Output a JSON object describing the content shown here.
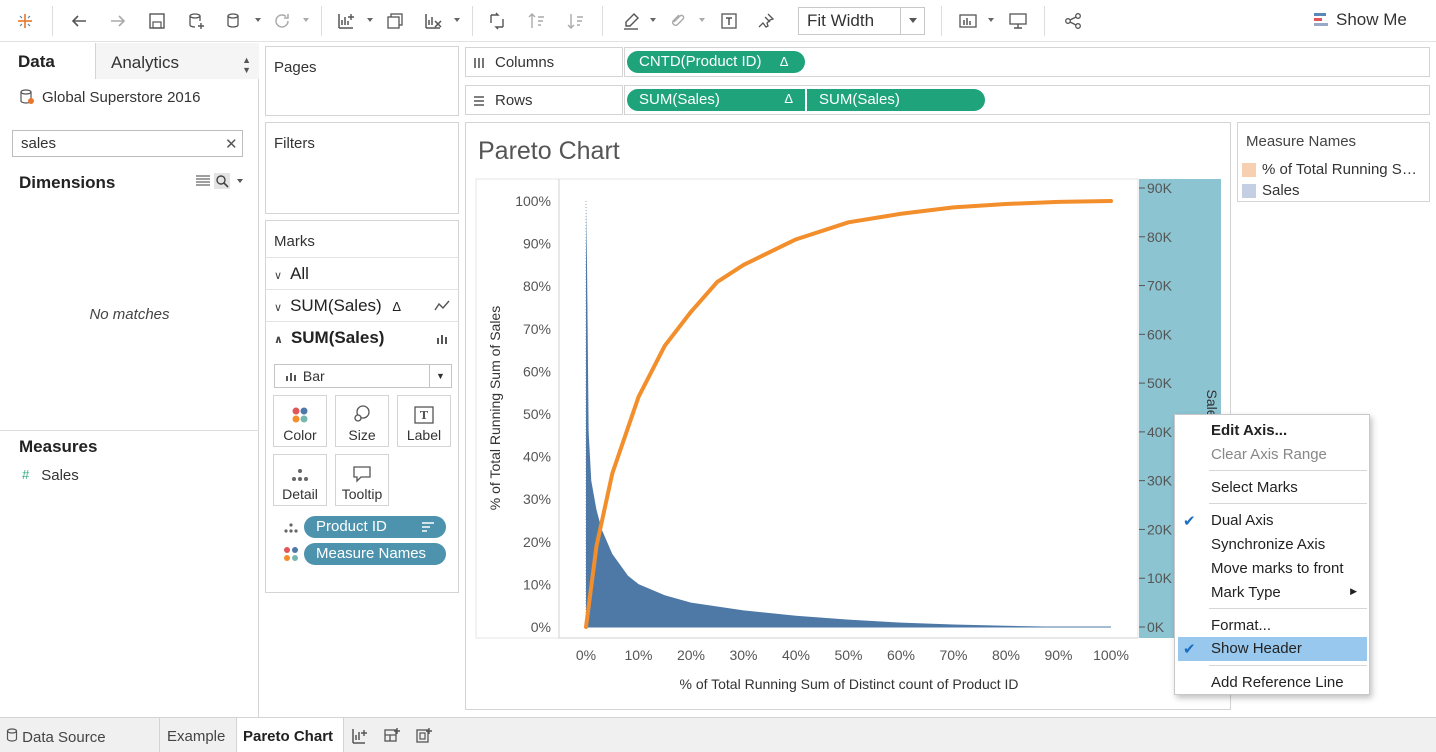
{
  "toolbar": {
    "fit_label": "Fit Width",
    "showme_label": "Show Me"
  },
  "data_pane": {
    "tab_data": "Data",
    "tab_analytics": "Analytics",
    "datasource": "Global Superstore 2016",
    "search_value": "sales",
    "dimensions_title": "Dimensions",
    "no_matches": "No matches",
    "measures_title": "Measures",
    "measures": [
      "Sales"
    ]
  },
  "cards": {
    "pages": "Pages",
    "filters": "Filters",
    "marks": "Marks",
    "marks_all": "All",
    "marks_layer1": "SUM(Sales)",
    "marks_layer1_delta": "Δ",
    "marks_layer2": "SUM(Sales)",
    "mark_type": "Bar",
    "color": "Color",
    "size": "Size",
    "label": "Label",
    "detail": "Detail",
    "tooltip": "Tooltip",
    "pill_product": "Product ID",
    "pill_measure": "Measure Names"
  },
  "shelves": {
    "columns_label": "Columns",
    "rows_label": "Rows",
    "columns_pill": "CNTD(Product ID)",
    "columns_pill_delta": "Δ",
    "rows_pill1": "SUM(Sales)",
    "rows_pill1_delta": "Δ",
    "rows_pill2": "SUM(Sales)"
  },
  "view": {
    "title": "Pareto Chart"
  },
  "chart_data": {
    "type": "bar",
    "title": "Pareto Chart",
    "xlabel": "% of Total Running Sum of Distinct count of Product ID",
    "ylabel_left": "% of Total Running Sum of Sales",
    "ylabel_right": "Sales",
    "x_ticks": [
      "0%",
      "10%",
      "20%",
      "30%",
      "40%",
      "50%",
      "60%",
      "70%",
      "80%",
      "90%",
      "100%"
    ],
    "y_left_ticks": [
      "0%",
      "10%",
      "20%",
      "30%",
      "40%",
      "50%",
      "60%",
      "70%",
      "80%",
      "90%",
      "100%"
    ],
    "y_right_ticks": [
      "0K",
      "10K",
      "20K",
      "30K",
      "40K",
      "50K",
      "60K",
      "70K",
      "80K",
      "90K"
    ],
    "xlim": [
      0,
      1
    ],
    "ylim_left": [
      0,
      1
    ],
    "ylim_right": [
      0,
      90000
    ],
    "series": [
      {
        "name": "% of Total Running Sum of Sales",
        "mark": "line",
        "color": "#f28e2b",
        "x": [
          0,
          0.02,
          0.05,
          0.1,
          0.15,
          0.2,
          0.25,
          0.3,
          0.4,
          0.5,
          0.6,
          0.7,
          0.8,
          0.9,
          1.0
        ],
        "y": [
          0,
          0.19,
          0.36,
          0.54,
          0.66,
          0.74,
          0.81,
          0.85,
          0.91,
          0.95,
          0.97,
          0.985,
          0.993,
          0.998,
          1.0
        ]
      },
      {
        "name": "Sales",
        "mark": "bar",
        "color": "#4e79a7",
        "x": [
          0,
          0.002,
          0.005,
          0.01,
          0.02,
          0.03,
          0.05,
          0.08,
          0.1,
          0.15,
          0.2,
          0.3,
          0.4,
          0.5,
          0.6,
          0.7,
          0.8,
          0.9
        ],
        "y": [
          86000,
          74000,
          40000,
          30000,
          24000,
          20000,
          15000,
          10500,
          8800,
          6500,
          5000,
          3400,
          2300,
          1500,
          900,
          500,
          250,
          50
        ]
      }
    ]
  },
  "legend": {
    "title": "Measure Names",
    "items": [
      {
        "label": "% of Total Running Sum of Sales",
        "color": "#f7d0b2"
      },
      {
        "label": "Sales",
        "color": "#c4cfe3"
      }
    ]
  },
  "context_menu": {
    "edit_axis": "Edit Axis...",
    "clear_axis": "Clear Axis Range",
    "select_marks": "Select Marks",
    "dual_axis": "Dual Axis",
    "sync_axis": "Synchronize Axis",
    "move_front": "Move marks to front",
    "mark_type": "Mark Type",
    "format": "Format...",
    "show_header": "Show Header",
    "add_ref": "Add Reference Line"
  },
  "bottom_tabs": {
    "data_source": "Data Source",
    "example": "Example",
    "pareto": "Pareto Chart"
  }
}
